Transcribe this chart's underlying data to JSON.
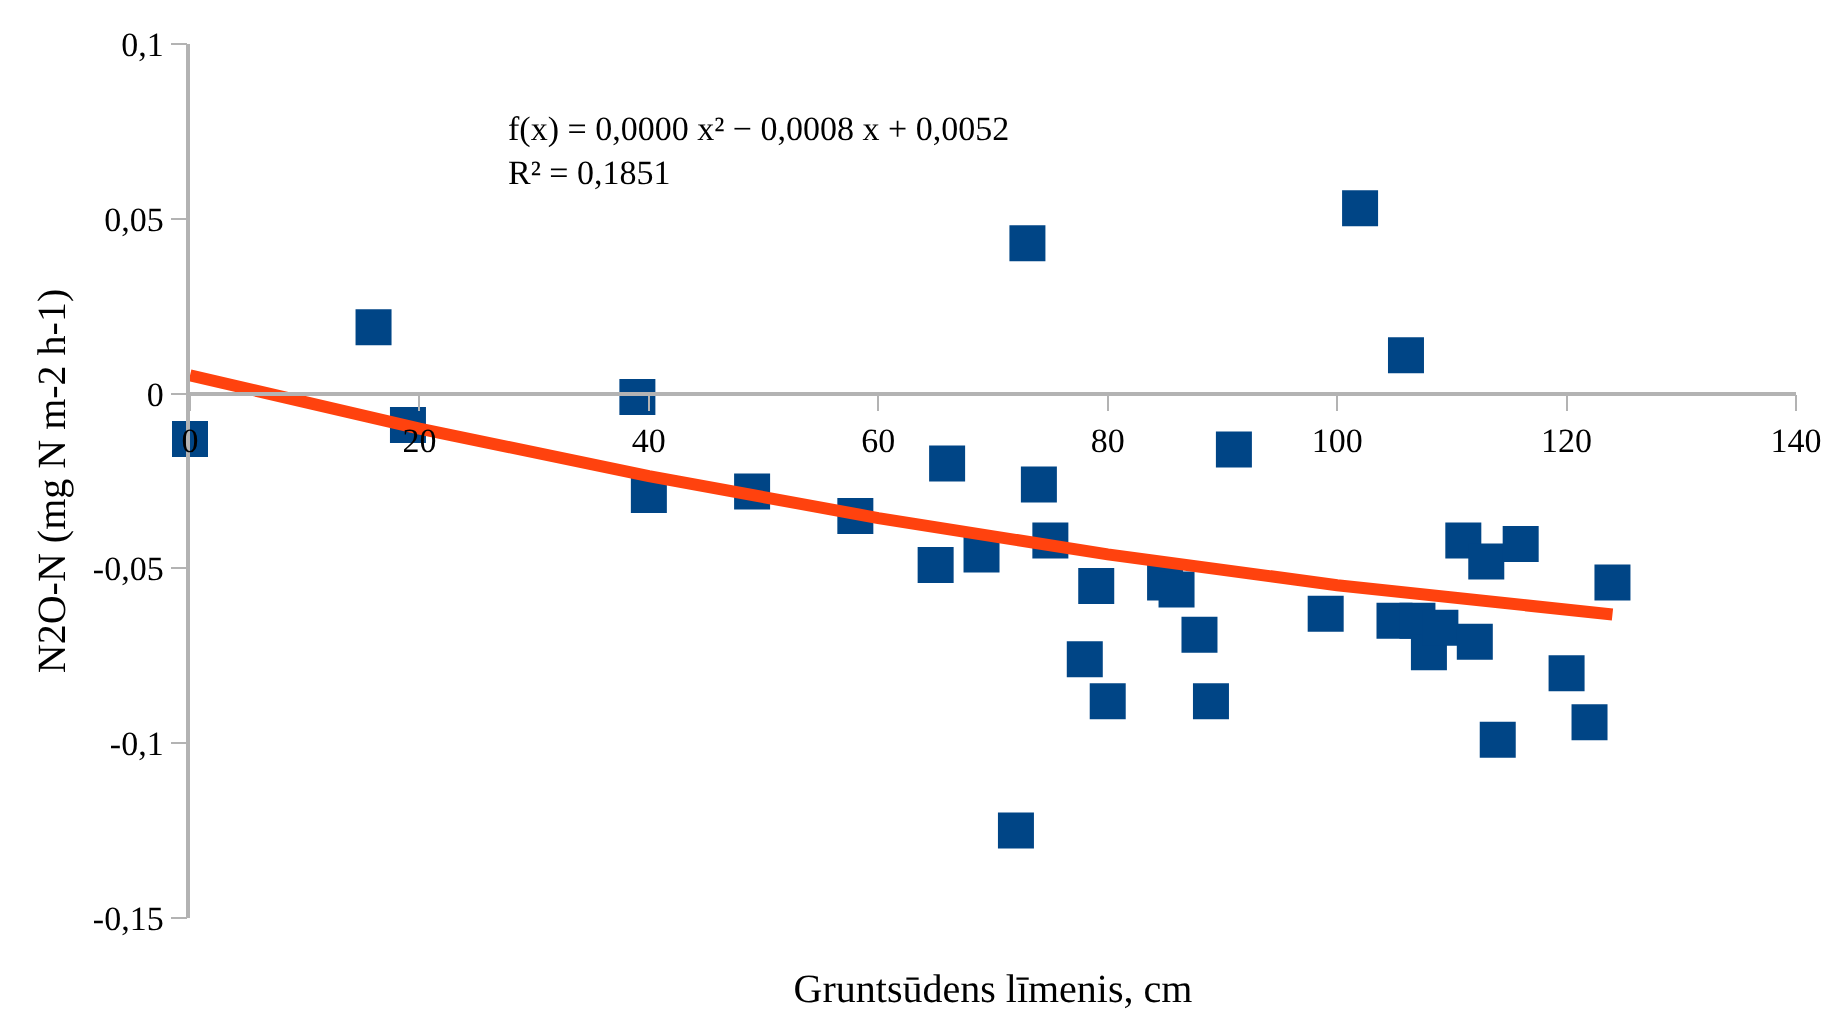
{
  "chart_data": {
    "type": "scatter",
    "xlabel": "Gruntsūdens līmenis, cm",
    "ylabel": "N2O-N (mg N m-2 h-1)",
    "annotations": [
      "f(x) = 0,0000 x² − 0,0008 x + 0,0052",
      "R² = 0,1851"
    ],
    "series": [
      {
        "type": "scatter",
        "marker": "square",
        "color": "#004586",
        "x": [
          0,
          16,
          19,
          39,
          40,
          49,
          58,
          65,
          66,
          69,
          72,
          73,
          74,
          75,
          78,
          79,
          80,
          85,
          86,
          88,
          89,
          91,
          99,
          102,
          106,
          105,
          107,
          108,
          109,
          112,
          111,
          113,
          116,
          114,
          120,
          122,
          124
        ],
        "values": [
          -0.013,
          0.019,
          -0.009,
          -0.001,
          -0.029,
          -0.028,
          -0.035,
          -0.049,
          -0.02,
          -0.046,
          -0.125,
          0.043,
          -0.026,
          -0.042,
          -0.076,
          -0.055,
          -0.088,
          -0.054,
          -0.056,
          -0.069,
          -0.088,
          -0.016,
          -0.063,
          0.053,
          0.011,
          -0.065,
          -0.065,
          -0.074,
          -0.067,
          -0.071,
          -0.042,
          -0.048,
          -0.043,
          -0.099,
          -0.08,
          -0.094,
          -0.054
        ]
      },
      {
        "type": "line",
        "marker": "none",
        "line_style": "solid",
        "color": "#ff420e",
        "x": [
          0,
          20,
          40,
          60,
          80,
          100,
          124
        ],
        "values": [
          0.0052,
          -0.01,
          -0.0236,
          -0.0356,
          -0.046,
          -0.0548,
          -0.0632
        ]
      }
    ],
    "xlim": [
      0,
      140
    ],
    "xticks": [
      0,
      20,
      40,
      60,
      80,
      100,
      120,
      140
    ],
    "ylim": [
      -0.15,
      0.1
    ],
    "yticks": [
      {
        "value": -0.15,
        "label": "-0,15"
      },
      {
        "value": -0.1,
        "label": "-0,1"
      },
      {
        "value": -0.05,
        "label": "-0,05"
      },
      {
        "value": 0,
        "label": "0"
      },
      {
        "value": 0.05,
        "label": "0,05"
      },
      {
        "value": 0.1,
        "label": "0,1"
      }
    ],
    "grid": false
  }
}
